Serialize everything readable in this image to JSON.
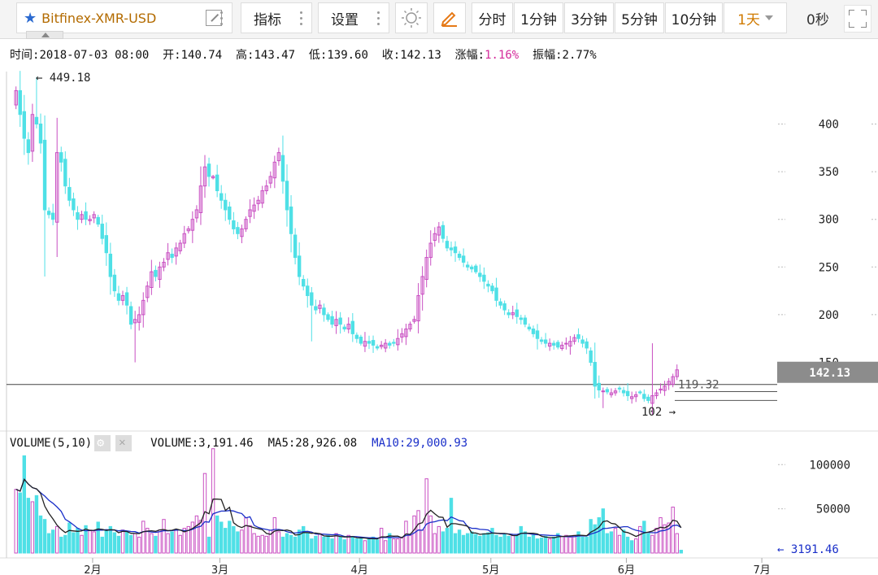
{
  "toolbar": {
    "symbol": "Bitfinex-XMR-USD",
    "indicators_label": "指标",
    "settings_label": "设置",
    "intervals": [
      "分时",
      "1分钟",
      "3分钟",
      "5分钟",
      "10分钟"
    ],
    "selected_interval": "1天",
    "countdown": "0秒"
  },
  "info": {
    "time_label": "时间:",
    "time": "2018-07-03 08:00",
    "open_label": "开:",
    "open": "140.74",
    "high_label": "高:",
    "high": "143.47",
    "low_label": "低:",
    "low": "139.60",
    "close_label": "收:",
    "close": "142.13",
    "change_label": "涨幅:",
    "change": "1.16%",
    "amp_label": "振幅:",
    "amp": "2.77%"
  },
  "volume_legend": {
    "title": "VOLUME(5,10)",
    "volume": "VOLUME:3,191.46",
    "ma5": "MA5:28,926.08",
    "ma10": "MA10:29,000.93"
  },
  "colors": {
    "up": "#c94fc2",
    "down": "#4fe0e6",
    "ma5": "#222222",
    "ma10": "#1a2fc9",
    "ma_label": "#1a2fc9"
  },
  "chart_data": {
    "type": "candlestick",
    "price_axis": {
      "ticks": [
        150,
        200,
        250,
        300,
        350,
        400
      ],
      "range": [
        95,
        455
      ]
    },
    "volume_axis": {
      "ticks": [
        50000,
        100000
      ],
      "range": [
        0,
        115000
      ]
    },
    "x_axis": {
      "labels": [
        "2月",
        "3月",
        "4月",
        "5月",
        "6月",
        "7月"
      ],
      "label_days": [
        19,
        50,
        84,
        116,
        149,
        182
      ]
    },
    "annotations": {
      "max": "449.18",
      "min": "102",
      "level": "119.32",
      "last_price": "142.13",
      "last_volume": "3191.46"
    },
    "overlay_lines": [
      119.32,
      110
    ],
    "last_close": 142.13,
    "last_volume": 3191.46,
    "closes": [
      435,
      410,
      385,
      370,
      410,
      400,
      380,
      310,
      305,
      300,
      370,
      360,
      335,
      320,
      310,
      300,
      305,
      300,
      300,
      305,
      295,
      280,
      265,
      240,
      225,
      215,
      220,
      210,
      190,
      195,
      200,
      215,
      230,
      245,
      240,
      250,
      255,
      265,
      260,
      270,
      275,
      285,
      290,
      300,
      310,
      335,
      355,
      345,
      345,
      330,
      320,
      310,
      300,
      290,
      285,
      290,
      300,
      310,
      315,
      320,
      330,
      335,
      345,
      360,
      370,
      340,
      310,
      285,
      260,
      240,
      230,
      220,
      210,
      205,
      210,
      200,
      195,
      190,
      195,
      190,
      185,
      190,
      180,
      175,
      170,
      172,
      170,
      168,
      165,
      168,
      170,
      168,
      170,
      175,
      180,
      185,
      190,
      195,
      220,
      240,
      260,
      275,
      285,
      292,
      280,
      270,
      268,
      265,
      260,
      255,
      250,
      248,
      245,
      240,
      235,
      230,
      225,
      215,
      210,
      205,
      200,
      202,
      198,
      195,
      190,
      185,
      180,
      175,
      172,
      170,
      170,
      168,
      166,
      168,
      170,
      172,
      176,
      175,
      170,
      165,
      150,
      125,
      121,
      120,
      119,
      118,
      120,
      122,
      118,
      115,
      114,
      116,
      118,
      112,
      110,
      115,
      118,
      122,
      125,
      130,
      135,
      142.13
    ],
    "volumes": [
      72000,
      68000,
      110000,
      62000,
      58000,
      65000,
      42000,
      38000,
      22000,
      26000,
      30000,
      18000,
      20000,
      34000,
      23000,
      28000,
      20000,
      31000,
      26000,
      24000,
      35000,
      18000,
      25000,
      30000,
      23000,
      19000,
      26000,
      24000,
      20000,
      22000,
      18000,
      36000,
      28000,
      22000,
      19000,
      26000,
      38000,
      22000,
      24000,
      26000,
      20000,
      28000,
      30000,
      35000,
      42000,
      37000,
      90000,
      18000,
      118000,
      42000,
      35000,
      28000,
      36000,
      30000,
      24000,
      26000,
      40000,
      31000,
      22000,
      19000,
      20000,
      19000,
      26000,
      40000,
      24000,
      18000,
      22000,
      20000,
      18000,
      26000,
      30000,
      22000,
      16000,
      19000,
      22000,
      18000,
      20000,
      16000,
      22000,
      18000,
      15000,
      20000,
      18000,
      16000,
      17000,
      14000,
      16000,
      18000,
      15000,
      28000,
      14000,
      22000,
      16000,
      16000,
      18000,
      36000,
      20000,
      42000,
      48000,
      26000,
      84000,
      42000,
      22000,
      30000,
      24000,
      28000,
      62000,
      22000,
      26000,
      20000,
      22000,
      24000,
      21000,
      19000,
      22000,
      23000,
      28000,
      20000,
      18000,
      22000,
      19000,
      20000,
      20000,
      30000,
      24000,
      18000,
      20000,
      16000,
      17000,
      19000,
      16000,
      18000,
      22000,
      19000,
      20000,
      18000,
      20000,
      24000,
      18000,
      18000,
      38000,
      32000,
      40000,
      50000,
      22000,
      24000,
      28000,
      20000,
      26000,
      18000,
      14000,
      16000,
      30000,
      36000,
      22000,
      20000,
      28000,
      40000,
      32000,
      34000,
      52000,
      22000,
      3191.46
    ]
  }
}
